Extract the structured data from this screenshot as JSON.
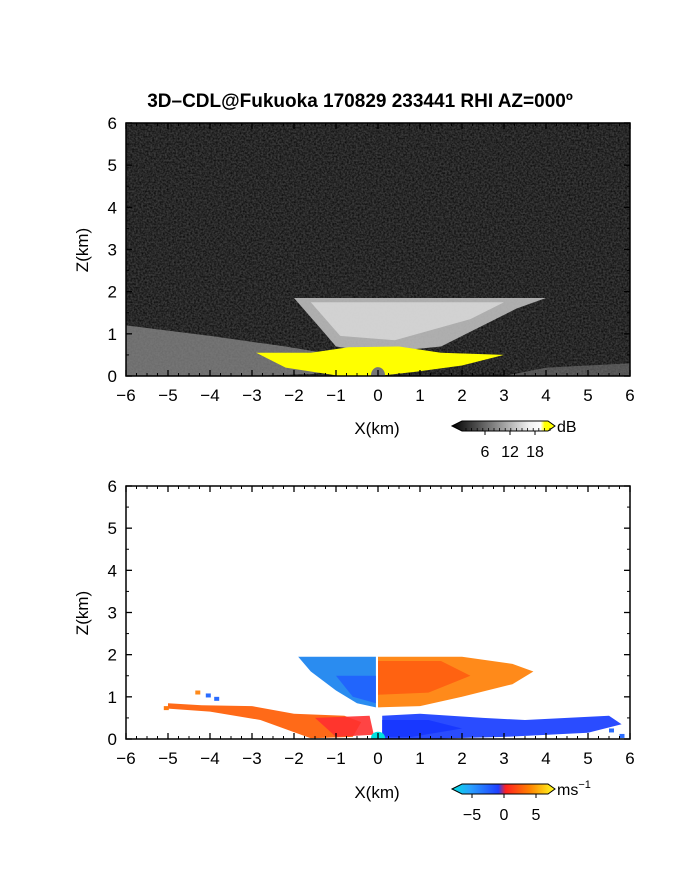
{
  "title": "3D–CDL@Fukuoka 170829 233441 RHI AZ=000º",
  "chart_data": [
    {
      "type": "heatmap",
      "panel": "reflectivity",
      "xlabel": "X(km)",
      "ylabel": "Z(km)",
      "xlim": [
        -6,
        6
      ],
      "ylim": [
        0,
        6
      ],
      "xticks": [
        "−6",
        "−5",
        "−4",
        "−3",
        "−2",
        "−1",
        "0",
        "1",
        "2",
        "3",
        "4",
        "5",
        "6"
      ],
      "yticks": [
        "0",
        "1",
        "2",
        "3",
        "4",
        "5",
        "6"
      ],
      "colorbar": {
        "unit": "dB",
        "ticks": [
          "6",
          "12",
          "18"
        ],
        "range": [
          0,
          21
        ],
        "colors": [
          "#000000",
          "#ffffff",
          "#ffff00"
        ]
      },
      "background_noise": "dark grey speckle",
      "regions": [
        {
          "name": "upper-layer",
          "x": [
            -2.0,
            4.0
          ],
          "z": [
            0.7,
            1.85
          ],
          "level_db": 12
        },
        {
          "name": "left-low-layer",
          "x": [
            -6.0,
            -1.0
          ],
          "z": [
            0.0,
            1.2
          ],
          "level_db": 9
        },
        {
          "name": "strong-echo-core",
          "x": [
            -2.9,
            3.0
          ],
          "z": [
            0.0,
            0.65
          ],
          "level_db": 20
        }
      ]
    },
    {
      "type": "heatmap",
      "panel": "doppler-velocity",
      "xlabel": "X(km)",
      "ylabel": "Z(km)",
      "xlim": [
        -6,
        6
      ],
      "ylim": [
        0,
        6
      ],
      "xticks": [
        "−6",
        "−5",
        "−4",
        "−3",
        "−2",
        "−1",
        "0",
        "1",
        "2",
        "3",
        "4",
        "5",
        "6"
      ],
      "yticks": [
        "0",
        "1",
        "2",
        "3",
        "4",
        "5",
        "6"
      ],
      "colorbar": {
        "unit": "ms",
        "unit_exp": "−1",
        "ticks": [
          "−5",
          "0",
          "5"
        ],
        "range": [
          -7,
          7
        ],
        "colors": [
          "#00e0e0",
          "#1f3fff",
          "#ff2020",
          "#ff8000",
          "#ffff20"
        ]
      },
      "regions": [
        {
          "name": "upper-left-receding",
          "x": [
            -1.9,
            -0.05
          ],
          "z": [
            0.7,
            1.9
          ],
          "velocity": -4
        },
        {
          "name": "upper-right-approaching",
          "x": [
            0.0,
            3.7
          ],
          "z": [
            0.75,
            1.95
          ],
          "velocity": 3
        },
        {
          "name": "left-low-approaching",
          "x": [
            -5.0,
            -0.4
          ],
          "z": [
            0.0,
            0.85
          ],
          "velocity": 1.5
        },
        {
          "name": "right-low-receding",
          "x": [
            0.1,
            5.8
          ],
          "z": [
            0.0,
            0.55
          ],
          "velocity": -3.5
        }
      ]
    }
  ]
}
